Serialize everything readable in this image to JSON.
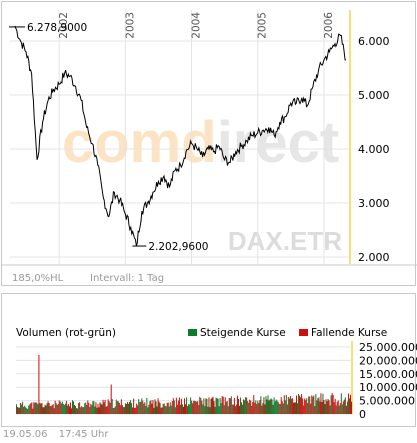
{
  "price_chart": {
    "watermark": "comdirect",
    "symbol": "DAX.ETR",
    "y_ticks": [
      "6.000",
      "5.000",
      "4.000",
      "3.000",
      "2.000"
    ],
    "year_labels": [
      "2002",
      "2003",
      "2004",
      "2005",
      "2006"
    ],
    "high_label": "6.278,9000",
    "low_label": "2.202,9600",
    "range_info": "185,0%HL",
    "interval_label": "Intervall: 1 Tag"
  },
  "volume_chart": {
    "title": "Volumen (rot-grün)",
    "legend_rising": "Steigende Kurse",
    "legend_falling": "Fallende Kurse",
    "y_ticks": [
      "25.000.000",
      "20.000.000",
      "15.000.000",
      "10.000.000",
      "5.000.000",
      "0"
    ]
  },
  "footer": {
    "date": "19.05.06",
    "time": "17:45 Uhr"
  },
  "colors": {
    "line": "#000000",
    "watermark_orange": "#fbe3c4",
    "watermark_gray": "#e6e6e6",
    "axis_highlight": "#f5e07a",
    "grid": "#e4e4e4",
    "rising": "#0f7a2a",
    "falling": "#cc1010",
    "label_gray": "#9a9a9a"
  },
  "chart_data": [
    {
      "type": "line",
      "title": "DAX.ETR",
      "xlabel": "",
      "ylabel": "",
      "x_range": [
        "2001-05",
        "2006-05"
      ],
      "ylim": [
        1800,
        6600
      ],
      "grid": true,
      "high": 6278.9,
      "low": 2202.96,
      "series": [
        {
          "name": "DAX.ETR",
          "x": [
            "2001-05",
            "2001-06",
            "2001-07",
            "2001-08",
            "2001-09",
            "2001-10",
            "2001-11",
            "2001-12",
            "2002-01",
            "2002-02",
            "2002-03",
            "2002-04",
            "2002-05",
            "2002-06",
            "2002-07",
            "2002-08",
            "2002-09",
            "2002-10",
            "2002-11",
            "2002-12",
            "2003-01",
            "2003-02",
            "2003-03",
            "2003-04",
            "2003-05",
            "2003-06",
            "2003-07",
            "2003-08",
            "2003-09",
            "2003-10",
            "2003-11",
            "2003-12",
            "2004-01",
            "2004-02",
            "2004-03",
            "2004-04",
            "2004-05",
            "2004-06",
            "2004-07",
            "2004-08",
            "2004-09",
            "2004-10",
            "2004-11",
            "2004-12",
            "2005-01",
            "2005-02",
            "2005-03",
            "2005-04",
            "2005-05",
            "2005-06",
            "2005-07",
            "2005-08",
            "2005-09",
            "2005-10",
            "2005-11",
            "2005-12",
            "2006-01",
            "2006-02",
            "2006-03",
            "2006-04",
            "2006-05"
          ],
          "values": [
            6278.9,
            6000,
            5800,
            5400,
            3800,
            4500,
            4900,
            5100,
            5200,
            5400,
            5350,
            5150,
            4900,
            4400,
            4100,
            3700,
            3100,
            2750,
            3200,
            3050,
            2800,
            2550,
            2202.96,
            2850,
            3000,
            3200,
            3400,
            3500,
            3300,
            3600,
            3700,
            3950,
            4100,
            4000,
            3850,
            4000,
            3950,
            4050,
            3800,
            3750,
            3950,
            4050,
            4150,
            4250,
            4300,
            4350,
            4400,
            4250,
            4500,
            4600,
            4850,
            4850,
            4950,
            4800,
            5150,
            5450,
            5650,
            5800,
            5950,
            6100,
            5650
          ]
        }
      ]
    },
    {
      "type": "bar",
      "title": "Volumen (rot-grün)",
      "xlabel": "",
      "ylabel": "",
      "ylim": [
        0,
        25000000
      ],
      "typical_daily_volume": 4000000,
      "series": [
        {
          "name": "Steigende Kurse",
          "color": "#0f7a2a"
        },
        {
          "name": "Fallende Kurse",
          "color": "#cc1010"
        }
      ],
      "spikes": [
        {
          "x": "2001-09",
          "value": 22000000,
          "direction": "falling"
        },
        {
          "x": "2002-10",
          "value": 11000000,
          "direction": "falling"
        }
      ]
    }
  ]
}
